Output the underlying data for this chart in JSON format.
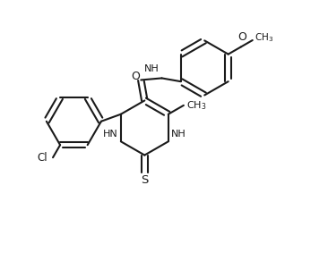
{
  "background_color": "#ffffff",
  "line_color": "#1a1a1a",
  "line_width": 1.5,
  "fig_width": 3.66,
  "fig_height": 3.11,
  "dpi": 100,
  "xlim": [
    0,
    10
  ],
  "ylim": [
    0,
    8.5
  ]
}
